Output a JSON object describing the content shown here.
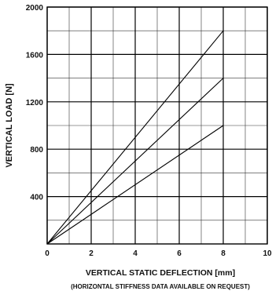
{
  "chart_data": {
    "type": "line",
    "title": "",
    "xlabel": "VERTICAL STATIC DEFLECTION [mm]",
    "ylabel": "VERTICAL LOAD [N]",
    "note": "(HORIZONTAL STIFFNESS DATA AVAILABLE ON REQUEST)",
    "xlim": [
      0,
      10
    ],
    "ylim": [
      0,
      2000
    ],
    "x_ticks": [
      "0",
      "2",
      "4",
      "6",
      "8",
      "10"
    ],
    "y_ticks": [
      "400",
      "800",
      "1200",
      "1600",
      "2000"
    ],
    "x_tick_values": [
      0,
      2,
      4,
      6,
      8,
      10
    ],
    "y_tick_values": [
      400,
      800,
      1200,
      1600,
      2000
    ],
    "x_minor_grid": [
      1,
      3,
      5,
      7,
      9
    ],
    "y_minor_grid": [
      200,
      600,
      1000,
      1400,
      1800
    ],
    "grid": true,
    "series": [
      {
        "x": [
          0,
          8
        ],
        "y": [
          0,
          1800
        ]
      },
      {
        "x": [
          0,
          8
        ],
        "y": [
          0,
          1400
        ]
      },
      {
        "x": [
          0,
          8
        ],
        "y": [
          0,
          1000
        ]
      }
    ]
  }
}
